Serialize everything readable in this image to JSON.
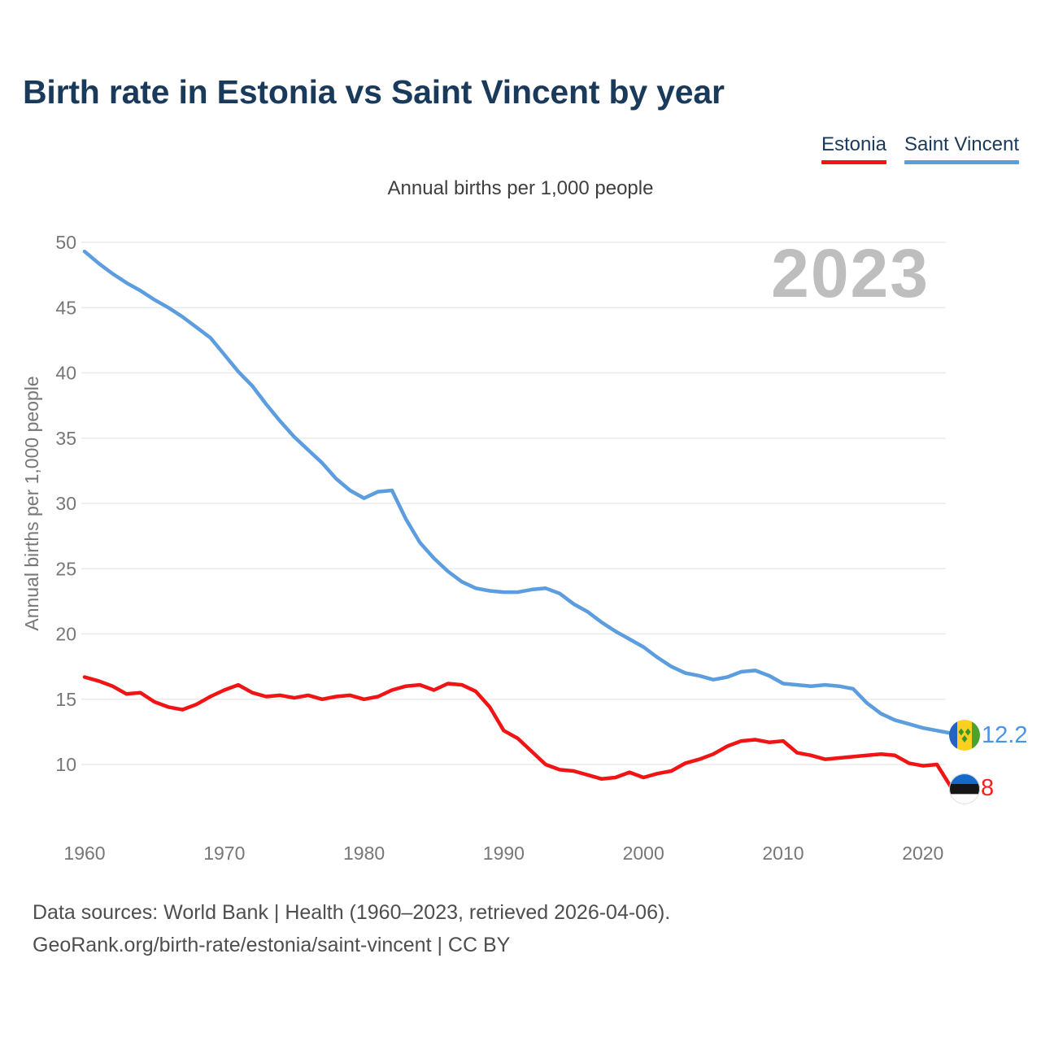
{
  "page": {
    "title": "Birth rate in Estonia vs Saint Vincent by year",
    "subtitle": "Annual births per 1,000 people",
    "watermark": "2023",
    "footer_line1": "Data sources: World Bank | Health (1960–2023, retrieved 2026-04-06).",
    "footer_line2": "GeoRank.org/birth-rate/estonia/saint-vincent | CC BY"
  },
  "legend": {
    "items": [
      {
        "label": "Estonia",
        "color": "#f11414"
      },
      {
        "label": "Saint Vincent",
        "color": "#5b9dde"
      }
    ]
  },
  "y_axis": {
    "title": "Annual births per 1,000 people",
    "ticks": [
      50,
      45,
      40,
      35,
      30,
      25,
      20,
      15,
      10
    ]
  },
  "x_axis": {
    "ticks": [
      1960,
      1970,
      1980,
      1990,
      2000,
      2010,
      2020
    ]
  },
  "end_labels": {
    "saint_vincent": {
      "value": "12.2",
      "color": "#4a94e4"
    },
    "estonia": {
      "value": "8",
      "color": "#f0211f"
    }
  },
  "colors": {
    "title_navy": "#1a3a5c",
    "estonia_red": "#f11414",
    "saint_vincent_blue": "#5b9dde",
    "gridline": "#ebebeb",
    "tick_gray": "#777777",
    "watermark_gray": "#bebebe",
    "footer_gray": "#4e4e50"
  },
  "chart_data": {
    "type": "line",
    "title": "Birth rate in Estonia vs Saint Vincent by year",
    "xlabel": "",
    "ylabel": "Annual births per 1,000 people",
    "ylim": [
      7,
      51
    ],
    "yticks": [
      10,
      15,
      20,
      25,
      30,
      35,
      40,
      45,
      50
    ],
    "grid": true,
    "legend_position": "top-right",
    "x": [
      1960,
      1961,
      1962,
      1963,
      1964,
      1965,
      1966,
      1967,
      1968,
      1969,
      1970,
      1971,
      1972,
      1973,
      1974,
      1975,
      1976,
      1977,
      1978,
      1979,
      1980,
      1981,
      1982,
      1983,
      1984,
      1985,
      1986,
      1987,
      1988,
      1989,
      1990,
      1991,
      1992,
      1993,
      1994,
      1995,
      1996,
      1997,
      1998,
      1999,
      2000,
      2001,
      2002,
      2003,
      2004,
      2005,
      2006,
      2007,
      2008,
      2009,
      2010,
      2011,
      2012,
      2013,
      2014,
      2015,
      2016,
      2017,
      2018,
      2019,
      2020,
      2021,
      2022,
      2023
    ],
    "series": [
      {
        "name": "Estonia",
        "color": "#f11414",
        "values": [
          16.7,
          16.4,
          16.0,
          15.4,
          15.5,
          14.8,
          14.4,
          14.2,
          14.6,
          15.2,
          15.7,
          16.1,
          15.5,
          15.2,
          15.3,
          15.1,
          15.3,
          15.0,
          15.2,
          15.3,
          15.0,
          15.2,
          15.7,
          16.0,
          16.1,
          15.7,
          16.2,
          16.1,
          15.6,
          14.4,
          12.6,
          12.0,
          11.0,
          10.0,
          9.6,
          9.5,
          9.2,
          8.9,
          9.0,
          9.4,
          9.0,
          9.3,
          9.5,
          10.1,
          10.4,
          10.8,
          11.4,
          11.8,
          11.9,
          11.7,
          11.8,
          10.9,
          10.7,
          10.4,
          10.5,
          10.6,
          10.7,
          10.8,
          10.7,
          10.1,
          9.9,
          10.0,
          8.3,
          8.0
        ],
        "final_value_label": "8"
      },
      {
        "name": "Saint Vincent",
        "color": "#5b9dde",
        "values": [
          49.3,
          48.4,
          47.6,
          46.9,
          46.3,
          45.6,
          45.0,
          44.3,
          43.5,
          42.7,
          41.4,
          40.1,
          39.0,
          37.6,
          36.3,
          35.1,
          34.1,
          33.1,
          31.9,
          31.0,
          30.4,
          30.9,
          31.0,
          28.8,
          27.0,
          25.8,
          24.8,
          24.0,
          23.5,
          23.3,
          23.2,
          23.2,
          23.4,
          23.5,
          23.1,
          22.3,
          21.7,
          20.9,
          20.2,
          19.6,
          19.0,
          18.2,
          17.5,
          17.0,
          16.8,
          16.5,
          16.7,
          17.1,
          17.2,
          16.8,
          16.2,
          16.1,
          16.0,
          16.1,
          16.0,
          15.8,
          14.7,
          13.9,
          13.4,
          13.1,
          12.8,
          12.6,
          12.4,
          12.2
        ],
        "final_value_label": "12.2"
      }
    ]
  }
}
